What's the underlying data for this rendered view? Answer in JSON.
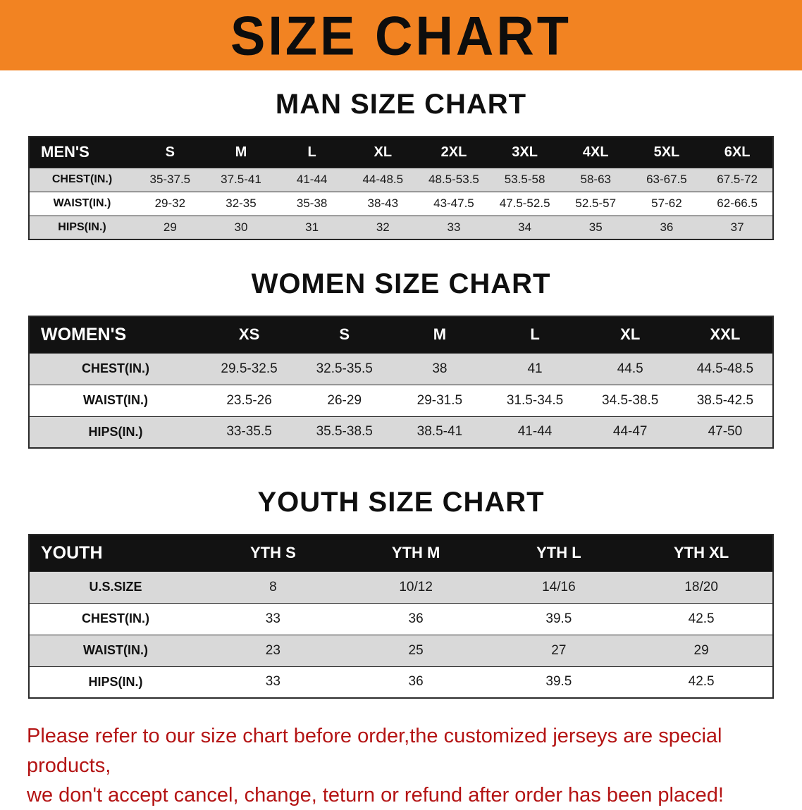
{
  "banner": {
    "title": "SIZE CHART",
    "bg_color": "#f28322",
    "text_color": "#0d0d0d"
  },
  "sections": [
    {
      "heading": "MAN SIZE CHART",
      "table": {
        "header_label": "MEN'S",
        "columns": [
          "S",
          "M",
          "L",
          "XL",
          "2XL",
          "3XL",
          "4XL",
          "5XL",
          "6XL"
        ],
        "rows": [
          {
            "label": "CHEST(IN.)",
            "values": [
              "35-37.5",
              "37.5-41",
              "41-44",
              "44-48.5",
              "48.5-53.5",
              "53.5-58",
              "58-63",
              "63-67.5",
              "67.5-72"
            ]
          },
          {
            "label": "WAIST(IN.)",
            "values": [
              "29-32",
              "32-35",
              "35-38",
              "38-43",
              "43-47.5",
              "47.5-52.5",
              "52.5-57",
              "57-62",
              "62-66.5"
            ]
          },
          {
            "label": "HIPS(IN.)",
            "values": [
              "29",
              "30",
              "31",
              "32",
              "33",
              "34",
              "35",
              "36",
              "37"
            ]
          }
        ]
      }
    },
    {
      "heading": "WOMEN SIZE CHART",
      "table": {
        "header_label": "WOMEN'S",
        "columns": [
          "XS",
          "S",
          "M",
          "L",
          "XL",
          "XXL"
        ],
        "rows": [
          {
            "label": "CHEST(IN.)",
            "values": [
              "29.5-32.5",
              "32.5-35.5",
              "38",
              "41",
              "44.5",
              "44.5-48.5"
            ]
          },
          {
            "label": "WAIST(IN.)",
            "values": [
              "23.5-26",
              "26-29",
              "29-31.5",
              "31.5-34.5",
              "34.5-38.5",
              "38.5-42.5"
            ]
          },
          {
            "label": "HIPS(IN.)",
            "values": [
              "33-35.5",
              "35.5-38.5",
              "38.5-41",
              "41-44",
              "44-47",
              "47-50"
            ]
          }
        ]
      }
    },
    {
      "heading": "YOUTH SIZE CHART",
      "table": {
        "header_label": "YOUTH",
        "columns": [
          "YTH S",
          "YTH M",
          "YTH L",
          "YTH XL"
        ],
        "rows": [
          {
            "label": "U.S.SIZE",
            "values": [
              "8",
              "10/12",
              "14/16",
              "18/20"
            ]
          },
          {
            "label": "CHEST(IN.)",
            "values": [
              "33",
              "36",
              "39.5",
              "42.5"
            ]
          },
          {
            "label": "WAIST(IN.)",
            "values": [
              "23",
              "25",
              "27",
              "29"
            ]
          },
          {
            "label": "HIPS(IN.)",
            "values": [
              "33",
              "36",
              "39.5",
              "42.5"
            ]
          }
        ]
      }
    }
  ],
  "footer": {
    "color": "#b41414",
    "lines": [
      "Please refer to our size chart before order,the customized jerseys are special products,",
      "we don't accept cancel, change, teturn or refund after order has been placed!"
    ]
  }
}
